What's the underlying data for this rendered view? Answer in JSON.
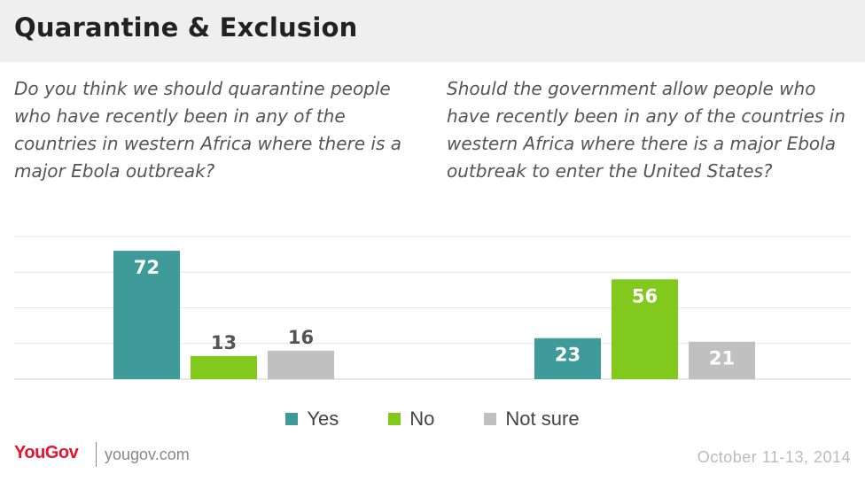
{
  "header": {
    "title": "Quarantine & Exclusion"
  },
  "colors": {
    "yes": "#3f9a9a",
    "no": "#82c91e",
    "not_sure": "#c0c0c0",
    "grid": "#e6e6e6"
  },
  "legend": {
    "items": [
      "Yes",
      "No",
      "Not sure"
    ]
  },
  "footer": {
    "brand": "YouGov",
    "site": "yougov.com",
    "date": "October 11-13, 2014"
  },
  "chart_data": [
    {
      "type": "bar",
      "title": "Do you think we should quarantine people who have recently been in any of the countries in western Africa where there is a major Ebola outbreak?",
      "categories": [
        "Yes",
        "No",
        "Not sure"
      ],
      "values": [
        72,
        13,
        16
      ],
      "ylim": [
        0,
        80
      ],
      "grid": true
    },
    {
      "type": "bar",
      "title": "Should the government allow people who have recently been in any of the countries in western Africa where there is a major Ebola outbreak to enter the United States?",
      "categories": [
        "Yes",
        "No",
        "Not sure"
      ],
      "values": [
        23,
        56,
        21
      ],
      "ylim": [
        0,
        80
      ],
      "grid": true
    }
  ]
}
